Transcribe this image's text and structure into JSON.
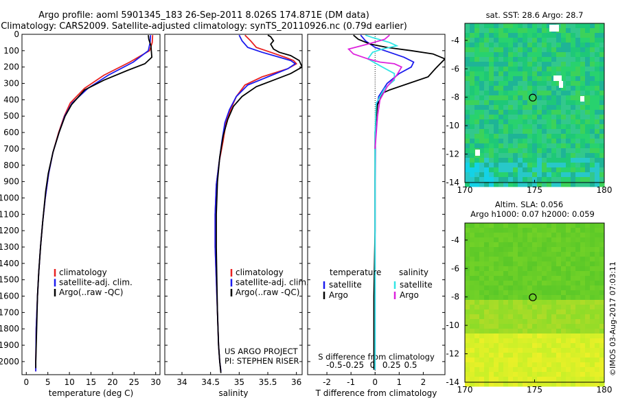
{
  "header": {
    "line1": "Argo profile: aoml 5901345_183 26-Sep-2011 8.026S 174.871E (DM data)",
    "line2": "Climatology: CARS2009. Satellite-adjusted climatology: synTS_20110926.nc (0.79d earlier)"
  },
  "credits": {
    "project": "US ARGO PROJECT",
    "pi": "PI: STEPHEN RISER",
    "stamp": "©IMOS 03-Aug-2017 07:03:11"
  },
  "colors": {
    "climatology": "#e82020",
    "satellite": "#1a1aee",
    "argo": "#000000",
    "sat_s": "#33e5e5",
    "argo_s": "#dd22dd"
  },
  "chart_data": [
    {
      "id": "temperature",
      "type": "line",
      "xlabel": "temperature (deg C)",
      "ylabel": "",
      "xlim": [
        -1,
        31
      ],
      "ylim": [
        2080,
        0
      ],
      "xticks": [
        0,
        5,
        10,
        15,
        20,
        25,
        30
      ],
      "yticks": [
        0,
        100,
        200,
        300,
        400,
        500,
        600,
        700,
        800,
        900,
        1000,
        1100,
        1200,
        1300,
        1400,
        1500,
        1600,
        1700,
        1800,
        1900,
        2000
      ],
      "legend": [
        "climatology",
        "satellite-adj. clim.",
        "Argo(..raw -QC)"
      ],
      "legend_position": "bottom-center",
      "series": [
        {
          "name": "climatology",
          "color": "#e82020",
          "x": [
            29.3,
            29.2,
            28.6,
            24,
            18,
            13.5,
            10.2,
            8.8,
            7.5,
            6.2,
            5.2,
            4.4,
            3.8,
            3.3,
            2.9,
            2.6,
            2.3,
            2.2,
            2.2
          ],
          "y": [
            5,
            50,
            100,
            170,
            250,
            330,
            420,
            500,
            600,
            720,
            850,
            1000,
            1150,
            1300,
            1450,
            1600,
            1800,
            2000,
            2060
          ]
        },
        {
          "name": "satellite-adj. clim.",
          "color": "#1a1aee",
          "x": [
            28.8,
            28.7,
            28.3,
            24.8,
            19,
            14.3,
            10.6,
            8.9,
            7.6,
            6.2,
            5.2,
            4.4,
            3.8,
            3.3,
            2.9,
            2.6,
            2.3,
            2.2,
            2.2
          ],
          "y": [
            5,
            50,
            100,
            170,
            250,
            330,
            420,
            500,
            600,
            720,
            850,
            1000,
            1150,
            1300,
            1450,
            1600,
            1800,
            2000,
            2060
          ]
        },
        {
          "name": "Argo(..raw -QC)",
          "color": "#000000",
          "x": [
            28.3,
            28.4,
            28.9,
            29.1,
            27.5,
            23.5,
            18,
            13.5,
            10.5,
            9,
            7.6,
            6.2,
            5.1,
            4.5,
            3.8,
            3.3,
            2.9,
            2.6,
            2.4,
            2.2,
            2.2
          ],
          "y": [
            5,
            30,
            70,
            140,
            180,
            220,
            280,
            340,
            430,
            500,
            600,
            720,
            850,
            960,
            1150,
            1300,
            1450,
            1600,
            1800,
            2000,
            2040
          ]
        }
      ]
    },
    {
      "id": "salinity",
      "type": "line",
      "xlabel": "salinity",
      "xlim": [
        33.7,
        36.1
      ],
      "ylim": [
        2080,
        0
      ],
      "xticks": [
        34,
        34.5,
        35,
        35.5,
        36
      ],
      "xticklabels": [
        "34",
        "34.5",
        "35",
        "35.5",
        "36"
      ],
      "legend": [
        "climatology",
        "satellite-adj. clim.",
        "Argo(..raw -QC)"
      ],
      "legend_position": "bottom-right",
      "series": [
        {
          "name": "climatology",
          "color": "#e82020",
          "x": [
            35.1,
            35.2,
            35.3,
            35.55,
            35.8,
            35.95,
            36.0,
            35.85,
            35.4,
            35.1,
            34.95,
            34.85,
            34.77,
            34.72,
            34.65,
            34.6,
            34.58,
            34.58,
            34.6,
            34.62,
            34.64,
            34.66,
            34.68
          ],
          "y": [
            5,
            40,
            80,
            110,
            140,
            160,
            180,
            210,
            260,
            310,
            380,
            460,
            540,
            650,
            780,
            920,
            1100,
            1300,
            1500,
            1700,
            1900,
            2000,
            2060
          ]
        },
        {
          "name": "satellite-adj. clim.",
          "color": "#1a1aee",
          "x": [
            35.0,
            35.05,
            35.15,
            35.4,
            35.7,
            35.9,
            35.98,
            35.85,
            35.5,
            35.15,
            34.95,
            34.83,
            34.75,
            34.7,
            34.65,
            34.6,
            34.58,
            34.58,
            34.6,
            34.62,
            34.64,
            34.66,
            34.68
          ],
          "y": [
            5,
            40,
            80,
            110,
            140,
            160,
            180,
            210,
            260,
            310,
            380,
            460,
            540,
            650,
            780,
            920,
            1100,
            1300,
            1500,
            1700,
            1900,
            2000,
            2060
          ]
        },
        {
          "name": "Argo(..raw -QC)",
          "color": "#000000",
          "x": [
            35.5,
            35.55,
            35.6,
            35.55,
            35.6,
            35.7,
            35.9,
            36.05,
            36.1,
            35.9,
            35.6,
            35.3,
            35.05,
            34.9,
            34.8,
            34.72,
            34.66,
            34.62,
            34.6,
            34.6,
            34.61,
            34.62,
            34.64,
            34.66,
            34.68
          ],
          "y": [
            5,
            15,
            40,
            60,
            90,
            110,
            130,
            160,
            200,
            240,
            280,
            320,
            380,
            440,
            520,
            620,
            750,
            900,
            1100,
            1300,
            1500,
            1700,
            1900,
            2000,
            2070
          ]
        }
      ]
    },
    {
      "id": "difference",
      "type": "line",
      "xlabel": "T difference from climatology",
      "xlabel2": "S difference from climatology",
      "xlim": [
        -2.8,
        2.9
      ],
      "ylim": [
        2080,
        0
      ],
      "xticks_T": [
        -2,
        -1,
        0,
        1,
        2
      ],
      "xticks_S": [
        -0.5,
        -0.25,
        0,
        0.25,
        0.5
      ],
      "xticklabels_S": [
        "-0.5",
        "-0.25",
        "0",
        "0.25",
        "0.5"
      ],
      "legend_temperature_title": "temperature",
      "legend_salinity_title": "salinity",
      "legend": [
        "satellite",
        "Argo",
        "satellite",
        "Argo"
      ],
      "series": [
        {
          "name": "temperature satellite",
          "color": "#1a1aee",
          "x": [
            -0.6,
            -0.4,
            0,
            0.6,
            1.2,
            1.6,
            1.5,
            1.0,
            0.5,
            0.15,
            0.05,
            0.02,
            0.01,
            0.0,
            0.0,
            0.0,
            0.0
          ],
          "y": [
            5,
            40,
            80,
            110,
            140,
            170,
            200,
            240,
            300,
            380,
            460,
            560,
            700,
            900,
            1200,
            1600,
            2050
          ]
        },
        {
          "name": "temperature Argo",
          "color": "#000000",
          "x": [
            -0.9,
            -0.7,
            -0.2,
            0.5,
            1.5,
            2.4,
            2.9,
            2.7,
            2.5,
            2.2,
            1.4,
            0.6,
            0.3,
            0.2,
            0.1,
            0.05,
            0.0,
            0.0,
            0.0,
            -0.05,
            -0.05
          ],
          "y": [
            5,
            30,
            60,
            80,
            100,
            120,
            150,
            180,
            210,
            260,
            300,
            340,
            360,
            400,
            430,
            500,
            600,
            800,
            1200,
            1600,
            2050
          ]
        },
        {
          "name": "salinity satellite",
          "color": "#33e5e5",
          "x": [
            -0.4,
            -0.1,
            0.6,
            0.9,
            0.3,
            -0.1,
            -0.3,
            0.3,
            0.8,
            0.8,
            0.4,
            0.05,
            0.0,
            0.0,
            0.0,
            0.0
          ],
          "y": [
            5,
            20,
            50,
            70,
            90,
            110,
            150,
            200,
            240,
            280,
            330,
            420,
            600,
            900,
            1400,
            2050
          ]
        },
        {
          "name": "salinity Argo",
          "color": "#dd22dd",
          "x": [
            0.6,
            0.4,
            -0.3,
            -1.1,
            -0.9,
            -0.3,
            0.2,
            0.8,
            1.1,
            0.9,
            0.5,
            0.2,
            0.1,
            0.0
          ],
          "y": [
            5,
            30,
            60,
            90,
            120,
            150,
            170,
            180,
            200,
            250,
            320,
            400,
            500,
            700
          ]
        }
      ]
    },
    {
      "id": "sst_map",
      "type": "heatmap",
      "title": "sat. SST: 28.6  Argo: 28.7",
      "xlim": [
        170,
        180
      ],
      "ylim": [
        -14,
        -2.8
      ],
      "xticks": [
        170,
        175,
        180
      ],
      "yticks": [
        -4,
        -6,
        -8,
        -10,
        -12,
        -14
      ],
      "argo_position": {
        "lon": 174.871,
        "lat": -8.026
      }
    },
    {
      "id": "sla_map",
      "type": "heatmap",
      "title": "Altim. SLA: 0.056",
      "subtitle": "Argo h1000: 0.07 h2000: 0.059",
      "xlim": [
        170,
        180
      ],
      "ylim": [
        -14,
        -2.8
      ],
      "xticks": [
        170,
        175,
        180
      ],
      "yticks": [
        -4,
        -6,
        -8,
        -10,
        -12,
        -14
      ],
      "argo_position": {
        "lon": 174.871,
        "lat": -8.026
      }
    }
  ]
}
